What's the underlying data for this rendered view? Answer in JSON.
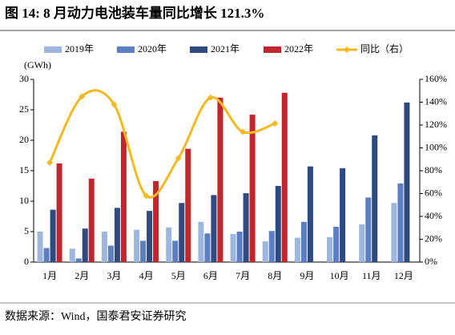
{
  "chart_data": {
    "type": "bar",
    "title": "图 14:  8 月动力电池装车量同比增长 121.3%",
    "y_axis_label": "(GWh)",
    "source": "数据来源：Wind，国泰君安证券研究",
    "categories": [
      "1月",
      "2月",
      "3月",
      "4月",
      "5月",
      "6月",
      "7月",
      "8月",
      "9月",
      "10月",
      "11月",
      "12月"
    ],
    "series": [
      {
        "name": "2019年",
        "color": "#9db6dd",
        "values": [
          5.0,
          2.2,
          5.0,
          5.3,
          5.7,
          6.6,
          4.6,
          3.4,
          4.0,
          4.1,
          6.2,
          9.7
        ]
      },
      {
        "name": "2020年",
        "color": "#5b7fc0",
        "values": [
          2.3,
          0.6,
          2.7,
          3.5,
          3.5,
          4.7,
          5.0,
          5.1,
          6.6,
          5.8,
          10.6,
          12.9
        ]
      },
      {
        "name": "2021年",
        "color": "#2e4a7f",
        "values": [
          8.6,
          5.5,
          8.9,
          8.4,
          9.7,
          11.0,
          11.3,
          12.5,
          15.7,
          15.4,
          20.8,
          26.2
        ]
      },
      {
        "name": "2022年",
        "color": "#c0262b",
        "values": [
          16.2,
          13.7,
          21.4,
          13.3,
          18.6,
          27.0,
          24.2,
          27.8,
          null,
          null,
          null,
          null
        ]
      },
      {
        "name": "同比（右）",
        "color": "#f3b923",
        "type": "line",
        "axis": "y2",
        "values": [
          87,
          145,
          138,
          58,
          91,
          144,
          114,
          121.3,
          null,
          null,
          null,
          null
        ]
      }
    ],
    "ylim": [
      0,
      30
    ],
    "yticks": [
      0,
      5,
      10,
      15,
      20,
      25,
      30
    ],
    "y2lim": [
      0,
      160
    ],
    "y2ticks": [
      {
        "value": 0,
        "label": "0%"
      },
      {
        "value": 20,
        "label": "20%"
      },
      {
        "value": 40,
        "label": "40%"
      },
      {
        "value": 60,
        "label": "60%"
      },
      {
        "value": 80,
        "label": "80%"
      },
      {
        "value": 100,
        "label": "100%"
      },
      {
        "value": 120,
        "label": "120%"
      },
      {
        "value": 140,
        "label": "140%"
      },
      {
        "value": 160,
        "label": "160%"
      }
    ]
  }
}
